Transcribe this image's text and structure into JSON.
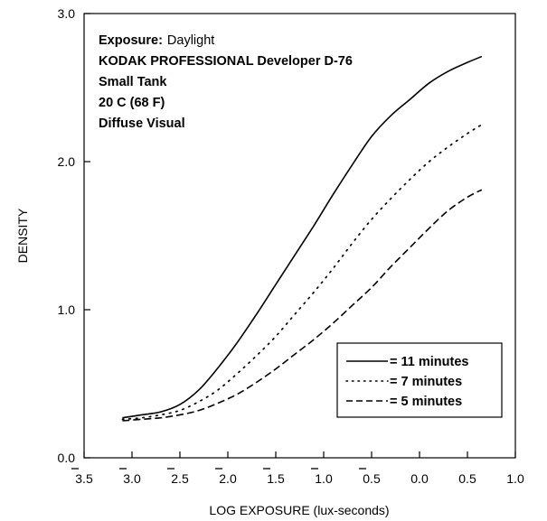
{
  "chart_data": {
    "type": "line",
    "xlabel": "LOG EXPOSURE (lux-seconds)",
    "ylabel": "DENSITY",
    "xlim": [
      -3.5,
      1.0
    ],
    "ylim": [
      0.0,
      3.0
    ],
    "grid": false,
    "x_ticks": [
      {
        "value": -3.5,
        "label": "3.5",
        "bar": true
      },
      {
        "value": -3.0,
        "label": "3.0",
        "bar": true
      },
      {
        "value": -2.5,
        "label": "2.5",
        "bar": true
      },
      {
        "value": -2.0,
        "label": "2.0",
        "bar": true
      },
      {
        "value": -1.5,
        "label": "1.5",
        "bar": true
      },
      {
        "value": -1.0,
        "label": "1.0",
        "bar": true
      },
      {
        "value": -0.5,
        "label": "0.5",
        "bar": true
      },
      {
        "value": 0.0,
        "label": "0.0",
        "bar": false
      },
      {
        "value": 0.5,
        "label": "0.5",
        "bar": false
      },
      {
        "value": 1.0,
        "label": "1.0",
        "bar": false
      }
    ],
    "y_ticks": [
      {
        "value": 0.0,
        "label": "0.0"
      },
      {
        "value": 1.0,
        "label": "1.0"
      },
      {
        "value": 2.0,
        "label": "2.0"
      },
      {
        "value": 3.0,
        "label": "3.0"
      }
    ],
    "annotation": {
      "exposure_label": "Exposure:",
      "exposure_value": "Daylight",
      "lines": [
        "KODAK PROFESSIONAL Developer D-76",
        "Small Tank",
        "20 C (68 F)",
        "Diffuse Visual"
      ]
    },
    "legend_position": "bottom-right",
    "series": [
      {
        "name": "= 11 minutes",
        "style": "solid",
        "x": [
          -3.1,
          -2.9,
          -2.7,
          -2.5,
          -2.3,
          -2.1,
          -1.9,
          -1.7,
          -1.5,
          -1.3,
          -1.1,
          -0.9,
          -0.7,
          -0.5,
          -0.3,
          -0.1,
          0.1,
          0.3,
          0.5,
          0.65
        ],
        "y": [
          0.27,
          0.29,
          0.31,
          0.36,
          0.46,
          0.61,
          0.78,
          0.97,
          1.17,
          1.37,
          1.57,
          1.78,
          1.98,
          2.17,
          2.31,
          2.42,
          2.53,
          2.61,
          2.67,
          2.71
        ]
      },
      {
        "name": "= 7 minutes",
        "style": "dotted",
        "x": [
          -3.1,
          -2.9,
          -2.7,
          -2.5,
          -2.3,
          -2.1,
          -1.9,
          -1.7,
          -1.5,
          -1.3,
          -1.1,
          -0.9,
          -0.7,
          -0.5,
          -0.3,
          -0.1,
          0.1,
          0.3,
          0.5,
          0.65
        ],
        "y": [
          0.26,
          0.27,
          0.29,
          0.32,
          0.38,
          0.46,
          0.57,
          0.69,
          0.82,
          0.97,
          1.12,
          1.28,
          1.45,
          1.61,
          1.75,
          1.88,
          2.0,
          2.1,
          2.19,
          2.25
        ]
      },
      {
        "name": "= 5 minutes",
        "style": "dashed",
        "x": [
          -3.1,
          -2.9,
          -2.7,
          -2.5,
          -2.3,
          -2.1,
          -1.9,
          -1.7,
          -1.5,
          -1.3,
          -1.1,
          -0.9,
          -0.7,
          -0.5,
          -0.3,
          -0.1,
          0.1,
          0.3,
          0.5,
          0.65
        ],
        "y": [
          0.25,
          0.26,
          0.27,
          0.29,
          0.32,
          0.37,
          0.43,
          0.51,
          0.6,
          0.7,
          0.8,
          0.91,
          1.03,
          1.15,
          1.29,
          1.42,
          1.55,
          1.67,
          1.76,
          1.81
        ]
      }
    ]
  }
}
